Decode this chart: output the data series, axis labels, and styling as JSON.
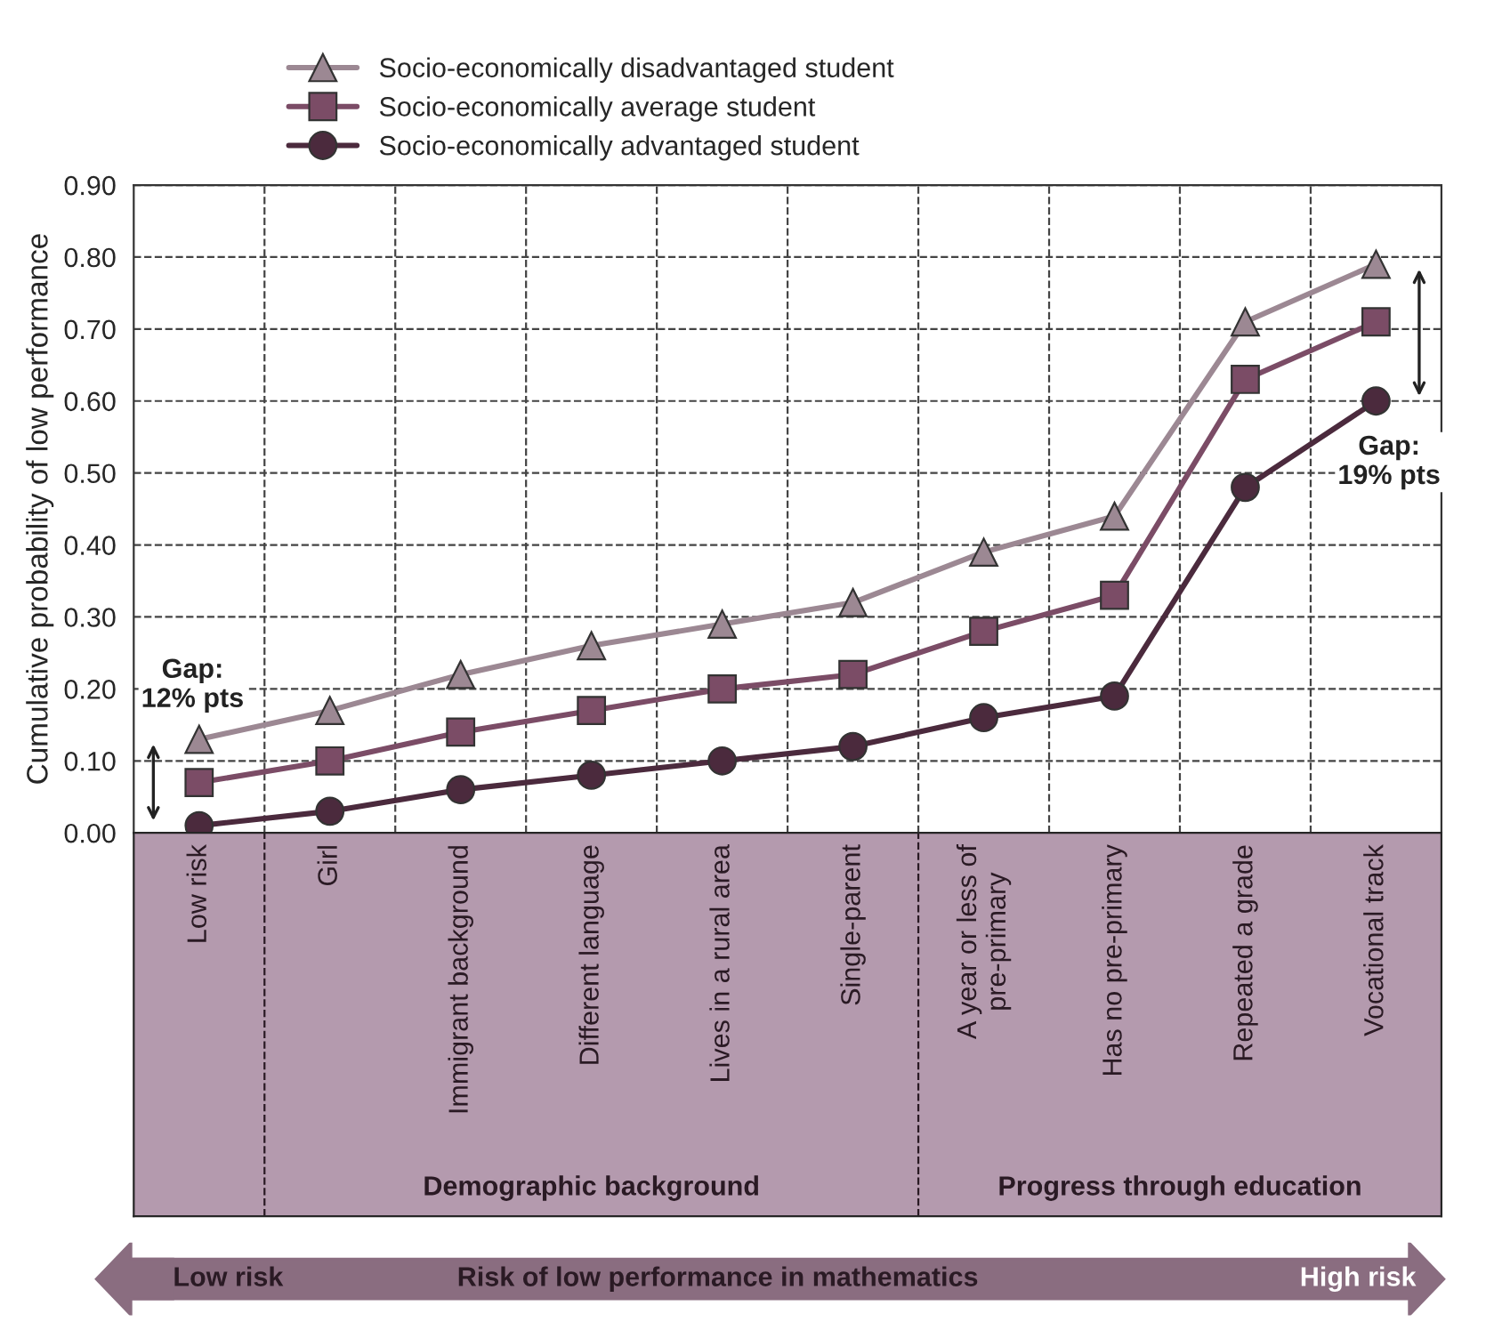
{
  "chart_data": {
    "type": "line",
    "ylabel": "Cumulative probability of low performance",
    "categories": [
      "Low risk",
      "Girl",
      "Immigrant background",
      "Different language",
      "Lives in a rural area",
      "Single-parent",
      "A year or less of\npre-primary",
      "Has no pre-primary",
      "Repeated a grade",
      "Vocational track"
    ],
    "series": [
      {
        "name": "Socio-economically disadvantaged student",
        "color": "#9c8893",
        "marker": "triangle",
        "values": [
          0.13,
          0.17,
          0.22,
          0.26,
          0.29,
          0.32,
          0.39,
          0.44,
          0.71,
          0.79
        ]
      },
      {
        "name": "Socio-economically average student",
        "color": "#7b4c66",
        "marker": "square",
        "values": [
          0.07,
          0.1,
          0.14,
          0.17,
          0.2,
          0.22,
          0.28,
          0.33,
          0.63,
          0.71
        ]
      },
      {
        "name": "Socio-economically advantaged student",
        "color": "#4b2a3d",
        "marker": "circle",
        "values": [
          0.01,
          0.03,
          0.06,
          0.08,
          0.1,
          0.12,
          0.16,
          0.19,
          0.48,
          0.6
        ]
      }
    ],
    "ylim": [
      0,
      0.9
    ],
    "yticks": [
      {
        "value": 0,
        "label": "0.00"
      },
      {
        "value": 0.1,
        "label": "0.10"
      },
      {
        "value": 0.2,
        "label": "0.20"
      },
      {
        "value": 0.3,
        "label": "0.30"
      },
      {
        "value": 0.4,
        "label": "0.40"
      },
      {
        "value": 0.5,
        "label": "0.50"
      },
      {
        "value": 0.6,
        "label": "0.60"
      },
      {
        "value": 0.7,
        "label": "0.70"
      },
      {
        "value": 0.8,
        "label": "0.80"
      },
      {
        "value": 0.9,
        "label": "0.90"
      }
    ],
    "grid": true,
    "legend": "top",
    "line_style": "solid",
    "annotations": [
      "Gap:\n12% pts",
      "Gap:\n19% pts",
      "Demographic background",
      "Progress through education",
      "Low risk",
      "Risk of low performance in mathematics",
      "High risk"
    ]
  }
}
